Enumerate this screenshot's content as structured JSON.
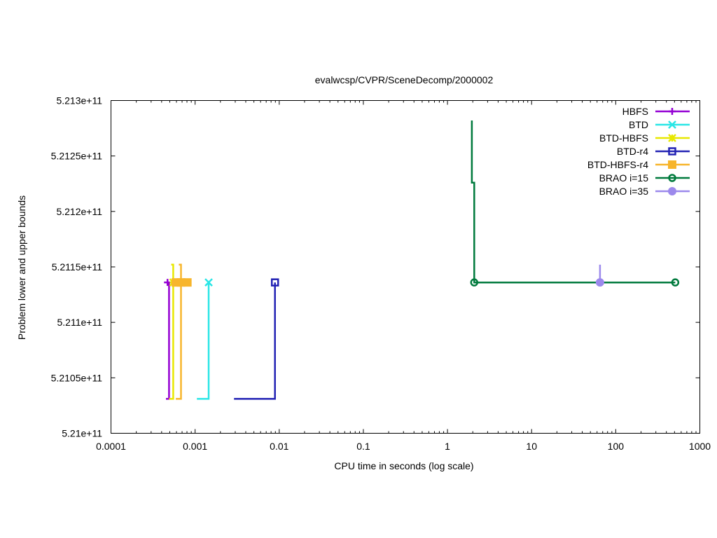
{
  "chart_data": {
    "type": "line",
    "title": "evalwcsp/CVPR/SceneDecomp/2000002",
    "xlabel": "CPU time in seconds (log scale)",
    "ylabel": "Problem lower and upper bounds",
    "xscale": "log",
    "xlim": [
      0.0001,
      1000
    ],
    "ylim": [
      521000000000,
      521300000000
    ],
    "x_ticks": [
      0.0001,
      0.001,
      0.01,
      0.1,
      1,
      10,
      100,
      1000
    ],
    "x_tick_labels": [
      "0.0001",
      "0.001",
      "0.01",
      "0.1",
      "1",
      "10",
      "100",
      "1000"
    ],
    "y_ticks": [
      521000000000,
      521050000000,
      521100000000,
      521150000000,
      521200000000,
      521250000000,
      521300000000
    ],
    "y_tick_labels": [
      "5.21e+11",
      "5.2105e+11",
      "5.211e+11",
      "5.2115e+11",
      "5.212e+11",
      "5.2125e+11",
      "5.213e+11"
    ],
    "grid": false,
    "legend_position": "top-right",
    "series": [
      {
        "name": "HBFS",
        "color": "#9400d3",
        "marker": "plus",
        "lines": [
          [
            [
              0.00045,
              521031000000
            ],
            [
              0.00049,
              521031000000
            ],
            [
              0.00049,
              521136000000
            ],
            [
              0.00047,
              521136000000
            ]
          ]
        ],
        "markers": [
          [
            0.00047,
            521136000000
          ]
        ]
      },
      {
        "name": "BTD",
        "color": "#2ae6e6",
        "marker": "cross",
        "lines": [
          [
            [
              0.00105,
              521031000000
            ],
            [
              0.00145,
              521031000000
            ],
            [
              0.00145,
              521136000000
            ]
          ]
        ],
        "markers": [
          [
            0.00145,
            521136000000
          ]
        ]
      },
      {
        "name": "BTD-HBFS",
        "color": "#e8e800",
        "marker": "asterisk",
        "lines": [
          [
            [
              0.00049,
              521031000000
            ],
            [
              0.00055,
              521031000000
            ],
            [
              0.00055,
              521152000000
            ],
            [
              0.00052,
              521152000000
            ]
          ]
        ],
        "markers": [
          [
            0.00055,
            521136000000
          ]
        ]
      },
      {
        "name": "BTD-r4",
        "color": "#2222b4",
        "marker": "square",
        "lines": [
          [
            [
              0.0029,
              521031000000
            ],
            [
              0.0089,
              521031000000
            ],
            [
              0.0089,
              521136000000
            ]
          ]
        ],
        "markers": [
          [
            0.0089,
            521136000000
          ]
        ]
      },
      {
        "name": "BTD-HBFS-r4",
        "color": "#f7b52c",
        "marker": "filled-square",
        "lines": [
          [
            [
              0.00059,
              521031000000
            ],
            [
              0.00068,
              521031000000
            ],
            [
              0.00068,
              521152000000
            ],
            [
              0.00064,
              521152000000
            ]
          ],
          [
            [
              0.00055,
              521136000000
            ],
            [
              0.00081,
              521136000000
            ]
          ]
        ],
        "markers": [
          [
            0.00059,
            521136000000
          ],
          [
            0.00068,
            521136000000
          ],
          [
            0.00081,
            521136000000
          ]
        ]
      },
      {
        "name": "BRAO i=15",
        "color": "#007a3d",
        "marker": "circle",
        "lines": [
          [
            [
              1.95,
              521282000000
            ],
            [
              1.95,
              521226000000
            ],
            [
              2.08,
              521226000000
            ],
            [
              2.08,
              521136000000
            ],
            [
              510,
              521136000000
            ]
          ]
        ],
        "markers": [
          [
            2.08,
            521136000000
          ],
          [
            510,
            521136000000
          ]
        ]
      },
      {
        "name": "BRAO i=35",
        "color": "#9c89ec",
        "marker": "filled-circle",
        "lines": [
          [
            [
              65,
              521152000000
            ],
            [
              65,
              521136000000
            ]
          ]
        ],
        "markers": [
          [
            65,
            521136000000
          ]
        ]
      }
    ]
  }
}
